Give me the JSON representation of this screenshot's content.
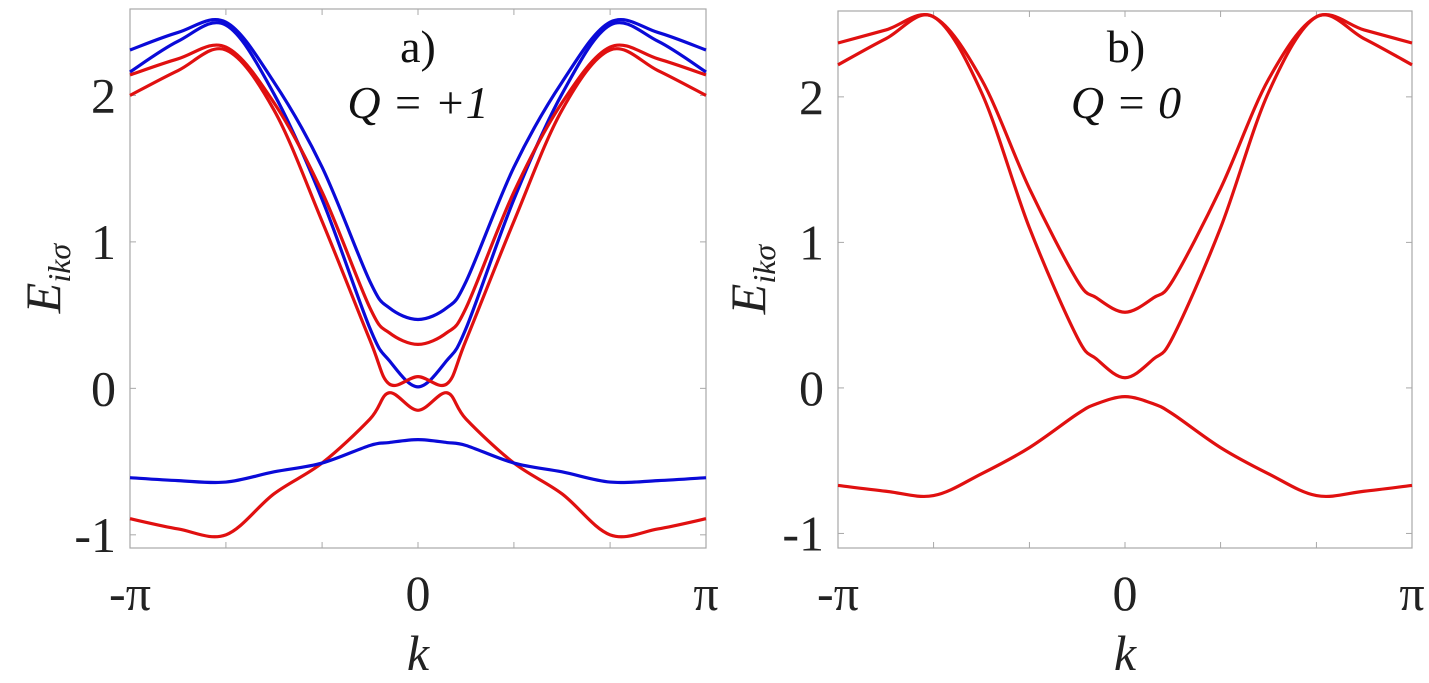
{
  "chart_data": [
    {
      "type": "line",
      "panel_label": "a)",
      "annotation": "Q = +1",
      "xlabel": "k",
      "ylabel": "E",
      "ylabel_sub": "ikσ",
      "x_units": "π",
      "xlim": [
        -1,
        1
      ],
      "ylim": [
        -1.09,
        2.59
      ],
      "xticks": [
        -1,
        -0.667,
        -0.333,
        0,
        0.333,
        0.667,
        1
      ],
      "xtick_labels": [
        {
          "at": -1,
          "text": "-π"
        },
        {
          "at": 0,
          "text": "0"
        },
        {
          "at": 1,
          "text": "π"
        }
      ],
      "yticks": [
        -1,
        0,
        1,
        2
      ],
      "ytick_labels": [
        "-1",
        "0",
        "1",
        "2"
      ],
      "grid": false,
      "x": [
        -1,
        -0.833,
        -0.667,
        -0.5,
        -0.333,
        -0.167,
        -0.1,
        0,
        0.1,
        0.167,
        0.333,
        0.5,
        0.667,
        0.833,
        1
      ],
      "series": [
        {
          "name": "blue-1",
          "color": "#0a0ad8",
          "values": [
            2.31,
            2.43,
            2.5,
            2.09,
            1.51,
            0.73,
            0.55,
            0.47,
            0.55,
            0.73,
            1.51,
            2.09,
            2.5,
            2.43,
            2.31
          ]
        },
        {
          "name": "blue-2",
          "color": "#0a0ad8",
          "values": [
            2.16,
            2.37,
            2.48,
            2.01,
            1.29,
            0.41,
            0.19,
            0.01,
            0.19,
            0.41,
            1.29,
            2.01,
            2.48,
            2.37,
            2.16
          ]
        },
        {
          "name": "red-1",
          "color": "#e01010",
          "values": [
            2.14,
            2.25,
            2.33,
            1.95,
            1.34,
            0.55,
            0.38,
            0.3,
            0.38,
            0.55,
            1.34,
            1.95,
            2.33,
            2.25,
            2.14
          ]
        },
        {
          "name": "red-2",
          "color": "#e01010",
          "values": [
            2.0,
            2.17,
            2.31,
            1.9,
            1.14,
            0.33,
            0.03,
            0.08,
            0.03,
            0.33,
            1.14,
            1.9,
            2.31,
            2.17,
            2.0
          ]
        },
        {
          "name": "red-3",
          "color": "#e01010",
          "values": [
            -0.89,
            -0.96,
            -1.0,
            -0.72,
            -0.51,
            -0.21,
            -0.03,
            -0.15,
            -0.03,
            -0.21,
            -0.51,
            -0.72,
            -1.0,
            -0.96,
            -0.89
          ]
        },
        {
          "name": "blue-3",
          "color": "#0a0ad8",
          "values": [
            -0.61,
            -0.63,
            -0.64,
            -0.57,
            -0.51,
            -0.39,
            -0.37,
            -0.35,
            -0.37,
            -0.39,
            -0.51,
            -0.57,
            -0.64,
            -0.63,
            -0.61
          ]
        }
      ]
    },
    {
      "type": "line",
      "panel_label": "b)",
      "annotation": "Q = 0",
      "xlabel": "k",
      "ylabel": "E",
      "ylabel_sub": "ikσ",
      "x_units": "π",
      "xlim": [
        -1,
        1
      ],
      "ylim": [
        -1.1,
        2.59
      ],
      "xticks": [
        -1,
        -0.667,
        -0.333,
        0,
        0.333,
        0.667,
        1
      ],
      "xtick_labels": [
        {
          "at": -1,
          "text": "-π"
        },
        {
          "at": 0,
          "text": "0"
        },
        {
          "at": 1,
          "text": "π"
        }
      ],
      "yticks": [
        -1,
        0,
        1,
        2
      ],
      "ytick_labels": [
        "-1",
        "0",
        "1",
        "2"
      ],
      "grid": false,
      "x": [
        -1,
        -0.833,
        -0.667,
        -0.5,
        -0.333,
        -0.167,
        -0.1,
        0,
        0.1,
        0.167,
        0.333,
        0.5,
        0.667,
        0.833,
        1
      ],
      "series": [
        {
          "name": "red-1",
          "color": "#e01010",
          "values": [
            2.37,
            2.46,
            2.55,
            2.12,
            1.37,
            0.74,
            0.62,
            0.52,
            0.62,
            0.74,
            1.37,
            2.12,
            2.55,
            2.46,
            2.37
          ]
        },
        {
          "name": "red-2",
          "color": "#e01010",
          "values": [
            2.22,
            2.4,
            2.55,
            2.03,
            1.1,
            0.35,
            0.2,
            0.07,
            0.2,
            0.35,
            1.1,
            2.03,
            2.55,
            2.4,
            2.22
          ]
        },
        {
          "name": "red-3",
          "color": "#e01010",
          "values": [
            -0.67,
            -0.71,
            -0.74,
            -0.59,
            -0.41,
            -0.18,
            -0.11,
            -0.06,
            -0.11,
            -0.18,
            -0.41,
            -0.59,
            -0.74,
            -0.71,
            -0.67
          ]
        }
      ]
    }
  ]
}
